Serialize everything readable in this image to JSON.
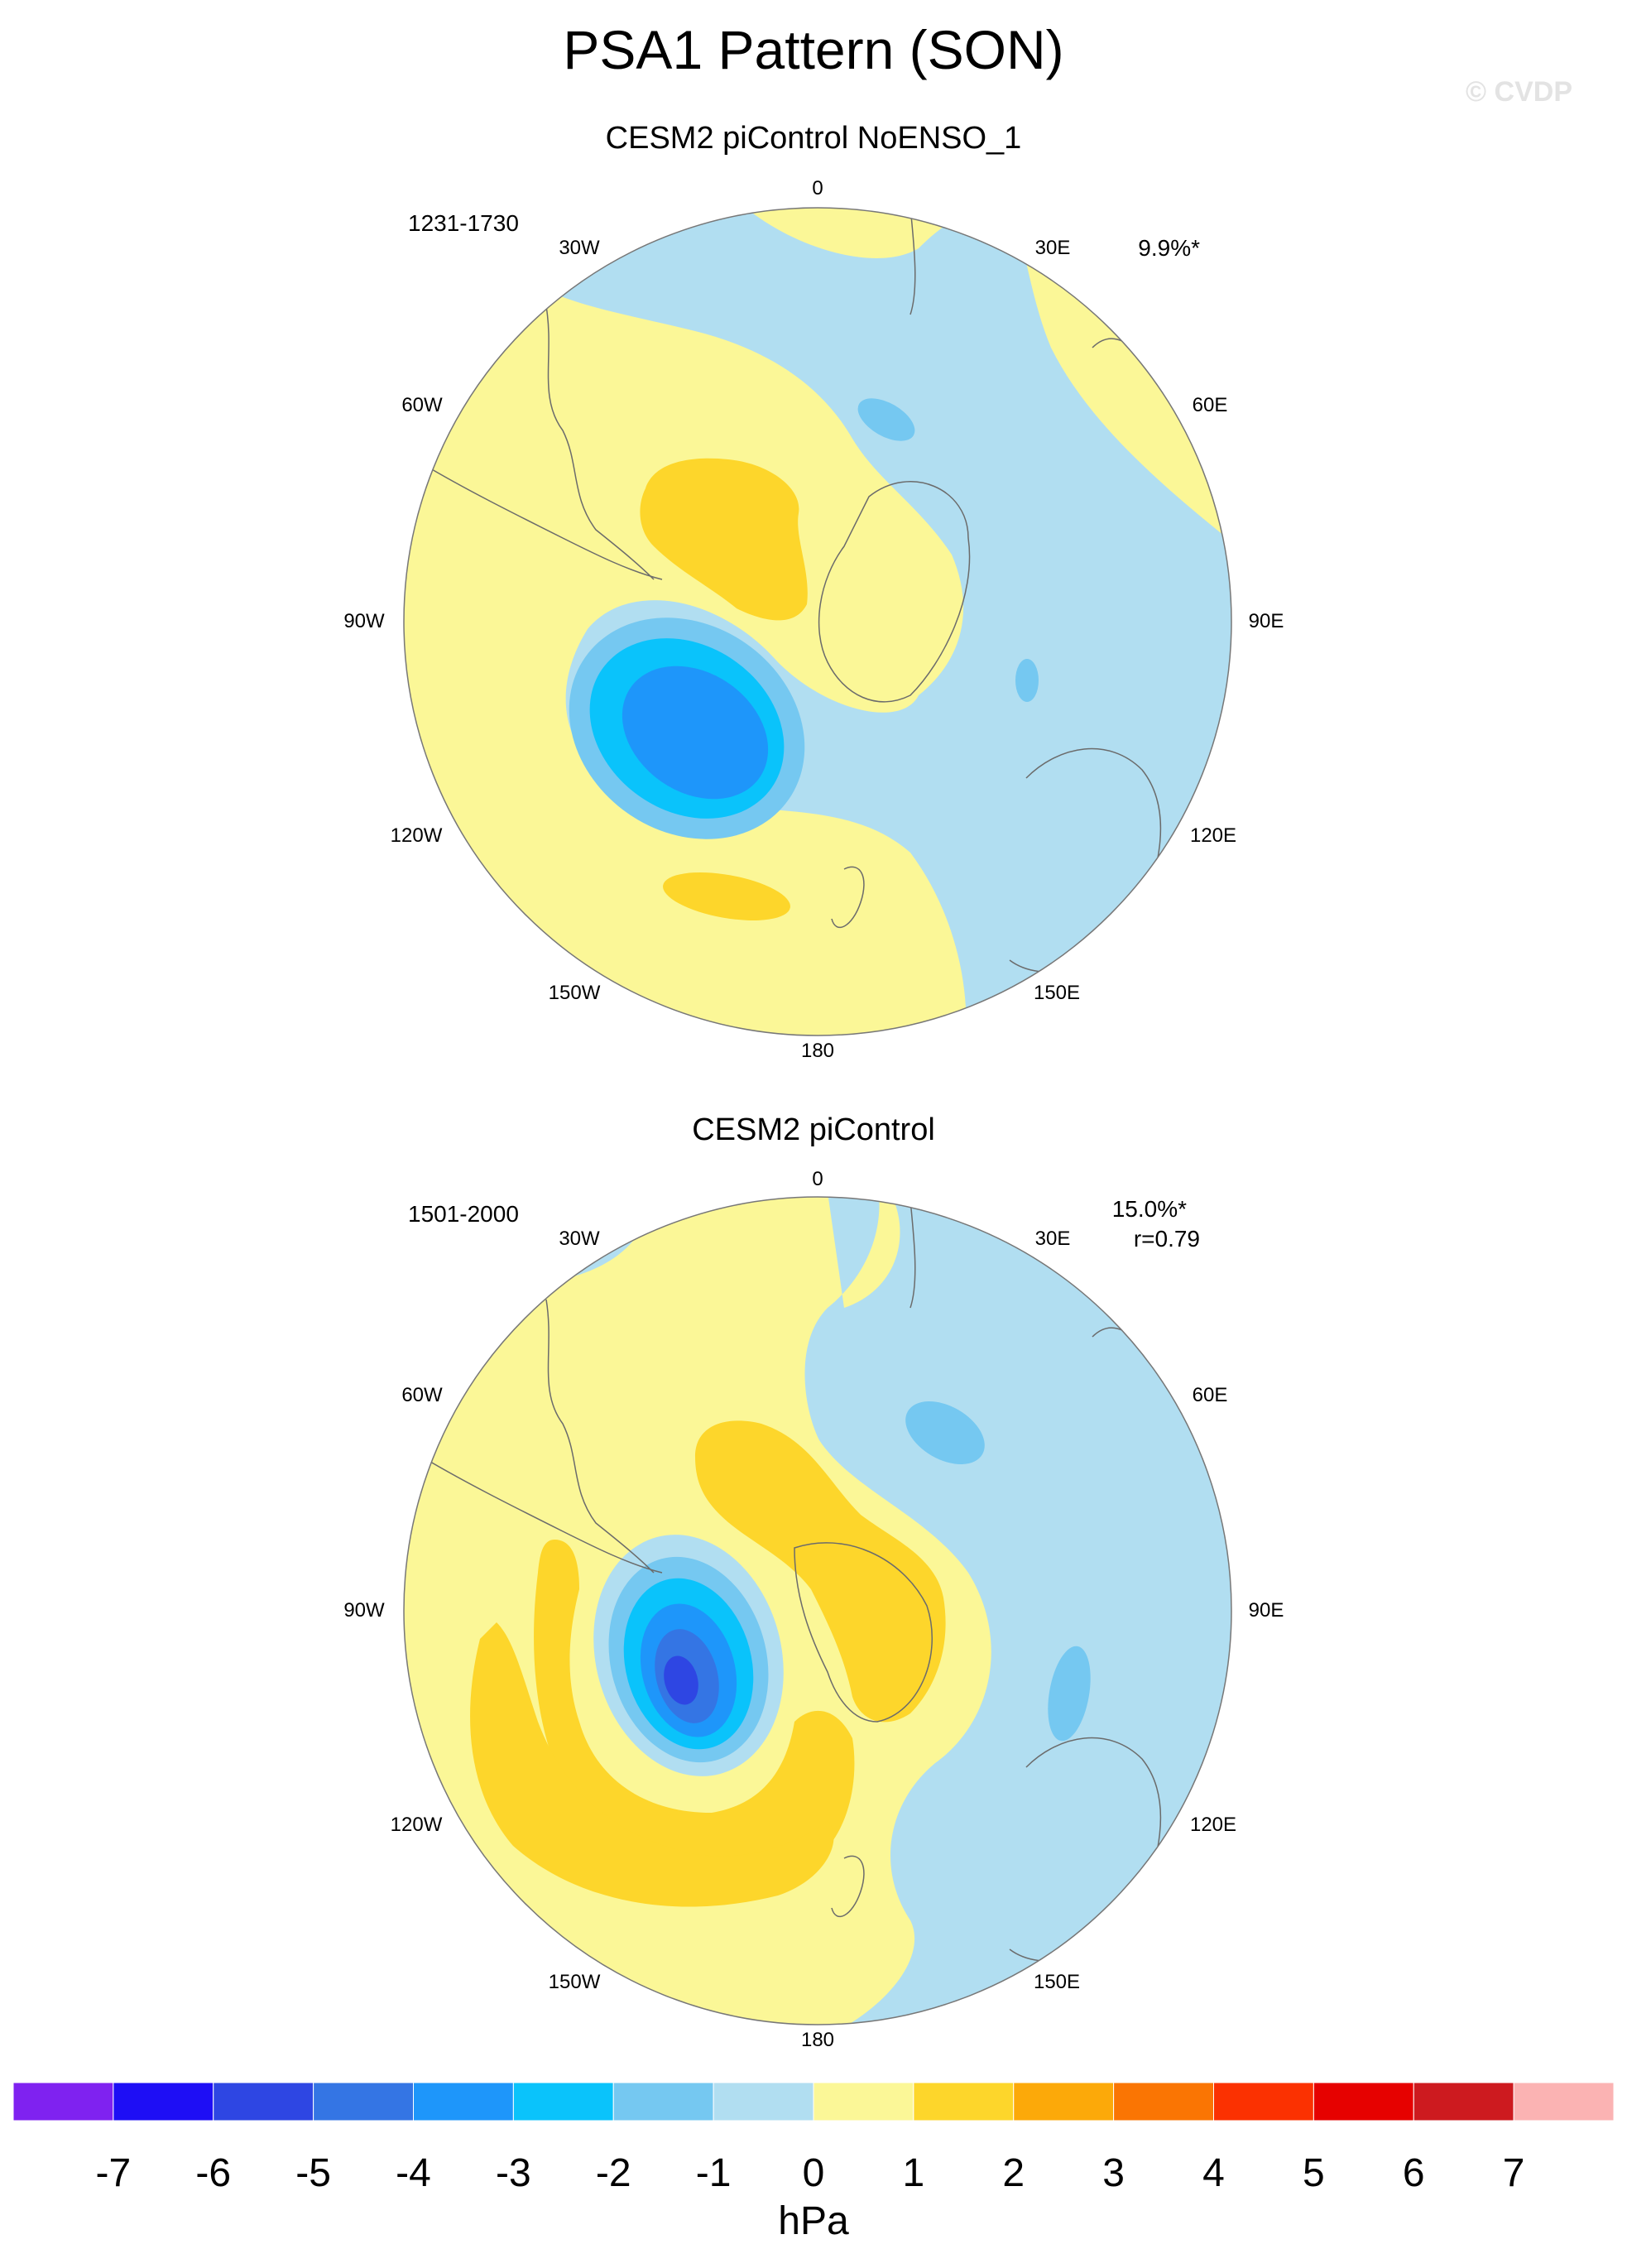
{
  "title": "PSA1 Pattern (SON)",
  "watermark": "© CVDP",
  "panels": [
    {
      "title": "CESM2 piControl NoENSO_1",
      "years": "1231-1730",
      "stat_lines": [
        "9.9%*"
      ],
      "lon_labels": [
        "0",
        "30E",
        "60E",
        "90E",
        "120E",
        "150E",
        "180",
        "150W",
        "120W",
        "90W",
        "60W",
        "30W"
      ]
    },
    {
      "title": "CESM2 piControl",
      "years": "1501-2000",
      "stat_lines": [
        "15.0%*",
        "r=0.79"
      ],
      "lon_labels": [
        "0",
        "30E",
        "60E",
        "90E",
        "120E",
        "150E",
        "180",
        "150W",
        "120W",
        "90W",
        "60W",
        "30W"
      ]
    }
  ],
  "colorbar": {
    "units": "hPa",
    "labels": [
      "-7",
      "-6",
      "-5",
      "-4",
      "-3",
      "-2",
      "-1",
      "0",
      "1",
      "2",
      "3",
      "4",
      "5",
      "6",
      "7"
    ],
    "colors": [
      "#7f22f0",
      "#1e0ef5",
      "#2e46e3",
      "#3475e4",
      "#1e96fa",
      "#0ac3fb",
      "#75c8f1",
      "#b1def1",
      "#fbf797",
      "#fdd62b",
      "#fca909",
      "#fa7503",
      "#fb3101",
      "#e60100",
      "#cd1a1f",
      "#fbb3b3"
    ]
  }
}
